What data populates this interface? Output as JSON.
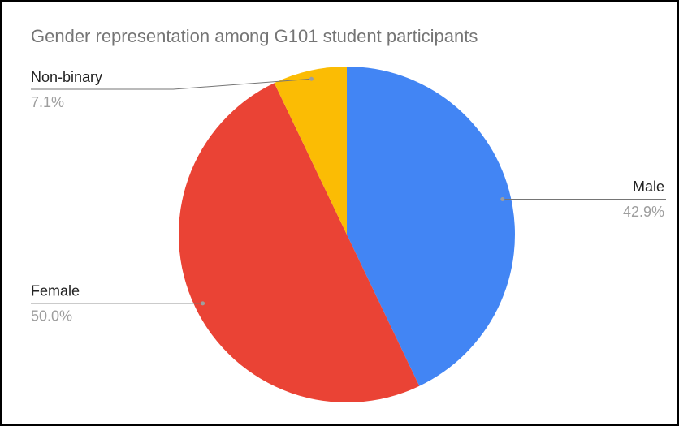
{
  "chart_data": {
    "type": "pie",
    "title": "Gender representation among G101 student participants",
    "categories": [
      "Male",
      "Female",
      "Non-binary"
    ],
    "values": [
      42.9,
      50.0,
      7.1
    ],
    "value_labels": [
      "42.9%",
      "50.0%",
      "7.1%"
    ],
    "colors": [
      "#4285f4",
      "#ea4335",
      "#fbbc04"
    ]
  }
}
